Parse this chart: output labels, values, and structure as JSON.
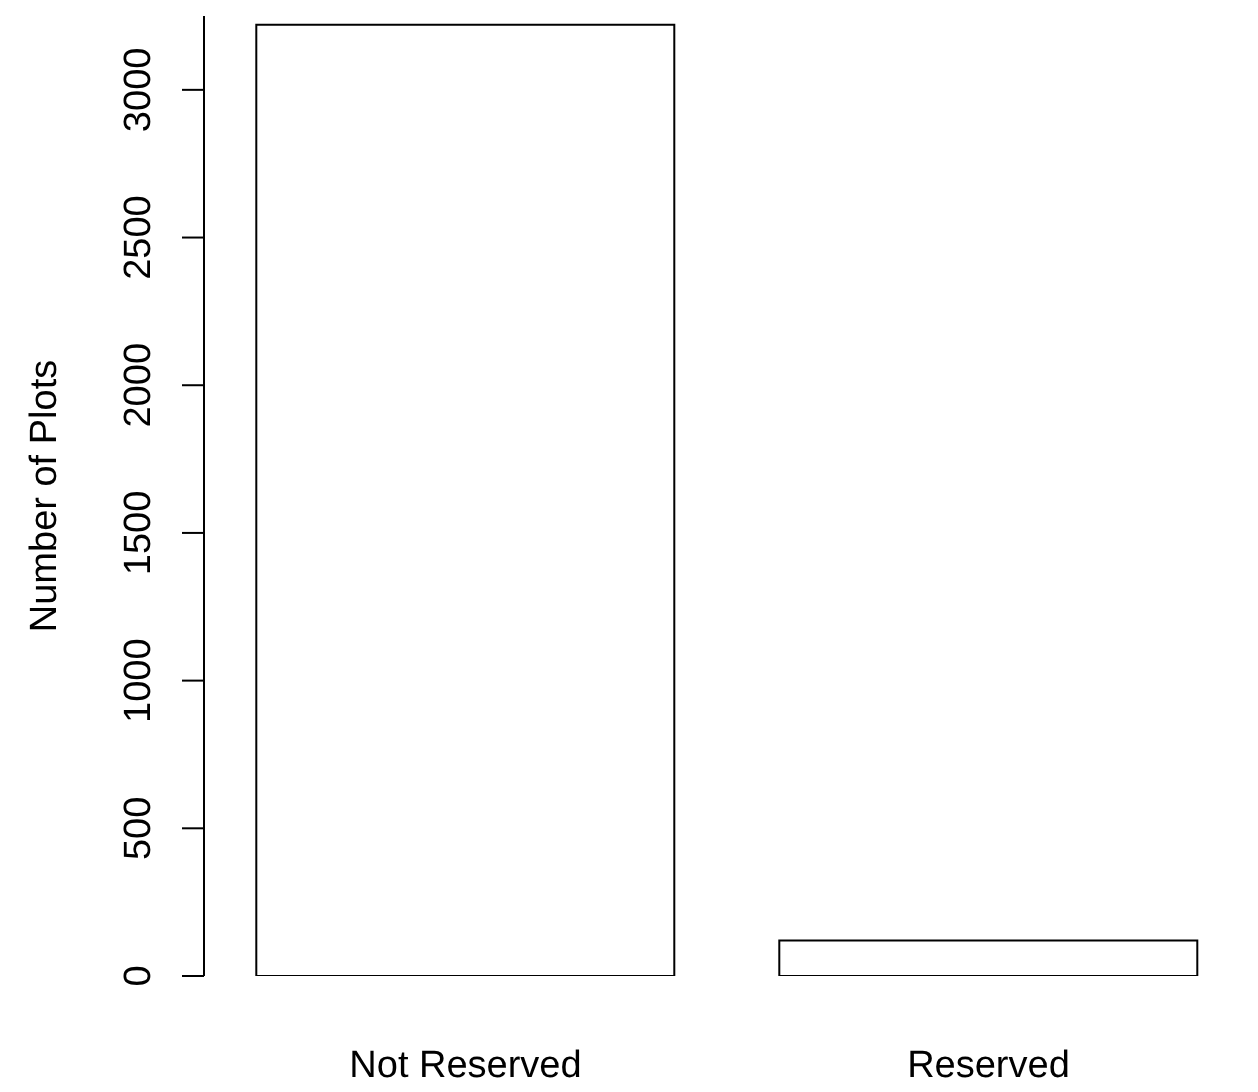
{
  "chart_data": {
    "type": "bar",
    "ylabel": "Number of Plots",
    "categories": [
      "Not Reserved",
      "Reserved"
    ],
    "values": [
      3220,
      120
    ],
    "color": "#ffffff",
    "ylim": [
      0,
      3250
    ],
    "yticks": [
      0,
      500,
      1000,
      1500,
      2000,
      2500,
      3000
    ]
  }
}
